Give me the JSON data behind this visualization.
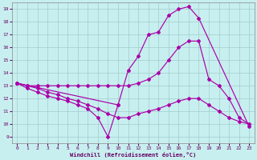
{
  "background_color": "#c8efef",
  "grid_color": "#a0cccc",
  "line_color": "#aa00aa",
  "xlabel": "Windchill (Refroidissement éolien,°C)",
  "xlim": [
    -0.5,
    23.5
  ],
  "ylim": [
    8.5,
    19.5
  ],
  "xticks": [
    0,
    1,
    2,
    3,
    4,
    5,
    6,
    7,
    8,
    9,
    10,
    11,
    12,
    13,
    14,
    15,
    16,
    17,
    18,
    19,
    20,
    21,
    22,
    23
  ],
  "yticks": [
    9,
    10,
    11,
    12,
    13,
    14,
    15,
    16,
    17,
    18,
    19
  ],
  "line1_x": [
    0,
    10,
    11,
    12,
    13,
    14,
    15,
    16,
    17,
    18,
    23
  ],
  "line1_y": [
    13.2,
    11.5,
    14.2,
    15.3,
    17.0,
    17.2,
    18.5,
    19.0,
    19.2,
    18.3,
    9.8
  ],
  "line2_x": [
    0,
    1,
    2,
    3,
    4,
    5,
    6,
    7,
    8,
    9,
    10,
    11,
    12,
    13,
    14,
    15,
    16,
    17,
    18,
    19,
    20,
    21,
    22,
    23
  ],
  "line2_y": [
    13.2,
    13.0,
    13.0,
    13.0,
    13.0,
    13.0,
    13.0,
    13.0,
    13.0,
    13.0,
    13.0,
    13.0,
    13.2,
    13.5,
    14.0,
    15.0,
    16.0,
    16.5,
    16.5,
    13.5,
    13.0,
    12.0,
    10.5,
    10.0
  ],
  "line3_x": [
    0,
    1,
    2,
    3,
    4,
    5,
    6,
    7,
    8,
    9,
    10
  ],
  "line3_y": [
    13.2,
    12.8,
    12.5,
    12.2,
    12.0,
    11.8,
    11.5,
    11.2,
    10.5,
    9.0,
    11.5
  ],
  "line4_x": [
    0,
    1,
    2,
    3,
    4,
    5,
    6,
    7,
    8,
    9,
    10,
    11,
    12,
    13,
    14,
    15,
    16,
    17,
    18,
    19,
    20,
    21,
    22,
    23
  ],
  "line4_y": [
    13.2,
    13.0,
    12.8,
    12.5,
    12.3,
    12.0,
    11.8,
    11.5,
    11.2,
    10.8,
    10.5,
    10.5,
    10.8,
    11.0,
    11.2,
    11.5,
    11.8,
    12.0,
    12.0,
    11.5,
    11.0,
    10.5,
    10.2,
    10.0
  ]
}
